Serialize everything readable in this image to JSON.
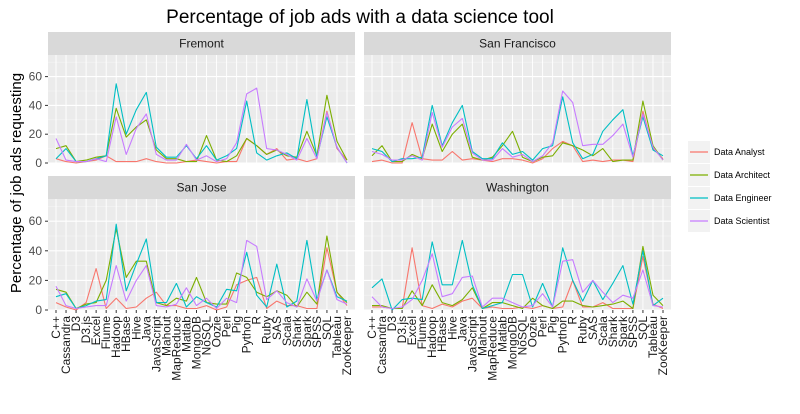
{
  "chart_data": {
    "type": "line",
    "title": "Percentage of job ads with a data science tool",
    "xlabel": "",
    "ylabel": "Percentage of job ads requesting",
    "ylim": [
      0,
      75
    ],
    "yticks": [
      0,
      20,
      40,
      60
    ],
    "grid": true,
    "legend_position": "right",
    "categories": [
      "C++",
      "Cassandra",
      "D3",
      "D3.js",
      "Excel",
      "Flume",
      "Hadoop",
      "HBase",
      "Hive",
      "Java",
      "JavaScript",
      "Mahout",
      "MapReduce",
      "Matlab",
      "MongoDB",
      "NoSQL",
      "Oozie",
      "Perl",
      "Pig",
      "Python",
      "R",
      "Ruby",
      "SAS",
      "Scala",
      "Shark",
      "Spark",
      "SPSS",
      "SQL",
      "Tableau",
      "ZooKeeper"
    ],
    "legend": [
      {
        "name": "Data Analyst",
        "color": "#F8766D"
      },
      {
        "name": "Data Architect",
        "color": "#7CAE00"
      },
      {
        "name": "Data Engineer",
        "color": "#00BFC4"
      },
      {
        "name": "Data Scientist",
        "color": "#C77CFF"
      }
    ],
    "panels": [
      {
        "label": "Fremont",
        "series": [
          {
            "name": "Data Analyst",
            "values": [
              3,
              1,
              0,
              1,
              2,
              5,
              1,
              1,
              1,
              3,
              1,
              0,
              0,
              1,
              2,
              1,
              0,
              1,
              1,
              17,
              12,
              6,
              10,
              2,
              3,
              1,
              3,
              36,
              10,
              2
            ]
          },
          {
            "name": "Data Architect",
            "values": [
              10,
              12,
              1,
              2,
              4,
              5,
              38,
              18,
              25,
              30,
              9,
              3,
              3,
              1,
              1,
              19,
              2,
              1,
              5,
              17,
              12,
              6,
              9,
              5,
              4,
              22,
              5,
              47,
              15,
              2
            ]
          },
          {
            "name": "Data Engineer",
            "values": [
              3,
              10,
              1,
              1,
              3,
              5,
              55,
              20,
              37,
              49,
              11,
              4,
              4,
              12,
              3,
              12,
              2,
              5,
              10,
              43,
              7,
              2,
              5,
              7,
              3,
              44,
              4,
              32,
              11,
              0
            ]
          },
          {
            "name": "Data Scientist",
            "values": [
              17,
              2,
              1,
              1,
              3,
              1,
              32,
              6,
              24,
              34,
              6,
              2,
              2,
              13,
              2,
              5,
              1,
              3,
              14,
              48,
              52,
              10,
              9,
              6,
              2,
              17,
              3,
              35,
              11,
              0
            ]
          }
        ]
      },
      {
        "label": "San Francisco",
        "series": [
          {
            "name": "Data Analyst",
            "values": [
              1,
              2,
              0,
              0,
              28,
              3,
              2,
              2,
              8,
              2,
              3,
              2,
              1,
              3,
              3,
              2,
              0,
              3,
              10,
              15,
              12,
              1,
              2,
              1,
              2,
              2,
              1,
              36,
              10,
              3
            ]
          },
          {
            "name": "Data Architect",
            "values": [
              5,
              12,
              1,
              1,
              6,
              3,
              27,
              8,
              20,
              27,
              4,
              2,
              4,
              12,
              22,
              4,
              1,
              4,
              5,
              14,
              12,
              9,
              5,
              10,
              1,
              2,
              2,
              43,
              12,
              2
            ]
          },
          {
            "name": "Data Engineer",
            "values": [
              10,
              8,
              1,
              3,
              3,
              4,
              40,
              12,
              28,
              40,
              8,
              3,
              3,
              14,
              6,
              8,
              2,
              10,
              12,
              46,
              14,
              3,
              6,
              22,
              30,
              37,
              5,
              32,
              9,
              5
            ]
          },
          {
            "name": "Data Scientist",
            "values": [
              8,
              6,
              2,
              2,
              5,
              2,
              35,
              11,
              25,
              31,
              7,
              2,
              2,
              10,
              4,
              6,
              1,
              5,
              14,
              50,
              42,
              12,
              13,
              13,
              19,
              27,
              4,
              34,
              11,
              2
            ]
          }
        ]
      },
      {
        "label": "San Jose",
        "series": [
          {
            "name": "Data Analyst",
            "values": [
              5,
              2,
              0,
              5,
              28,
              1,
              8,
              1,
              2,
              8,
              12,
              3,
              3,
              1,
              1,
              3,
              0,
              2,
              17,
              20,
              22,
              1,
              6,
              3,
              3,
              1,
              1,
              42,
              12,
              3
            ]
          },
          {
            "name": "Data Architect",
            "values": [
              14,
              12,
              1,
              4,
              5,
              20,
              55,
              22,
              33,
              33,
              5,
              3,
              8,
              6,
              22,
              5,
              4,
              4,
              25,
              22,
              12,
              9,
              13,
              10,
              2,
              12,
              4,
              50,
              12,
              5
            ]
          },
          {
            "name": "Data Engineer",
            "values": [
              9,
              11,
              1,
              3,
              6,
              7,
              58,
              13,
              31,
              48,
              5,
              5,
              18,
              2,
              9,
              5,
              2,
              14,
              13,
              39,
              10,
              2,
              31,
              2,
              6,
              47,
              7,
              27,
              9,
              6
            ]
          },
          {
            "name": "Data Scientist",
            "values": [
              16,
              3,
              1,
              2,
              3,
              3,
              30,
              6,
              20,
              30,
              3,
              2,
              4,
              15,
              3,
              8,
              1,
              8,
              5,
              47,
              43,
              7,
              13,
              5,
              2,
              21,
              6,
              27,
              7,
              4
            ]
          }
        ]
      },
      {
        "label": "Washington",
        "series": [
          {
            "name": "Data Analyst",
            "values": [
              2,
              2,
              1,
              1,
              42,
              3,
              1,
              4,
              2,
              6,
              8,
              1,
              2,
              1,
              1,
              2,
              1,
              3,
              1,
              2,
              20,
              2,
              2,
              5,
              1,
              1,
              1,
              36,
              4,
              1
            ]
          },
          {
            "name": "Data Architect",
            "values": [
              3,
              3,
              1,
              1,
              13,
              3,
              17,
              5,
              3,
              7,
              15,
              1,
              5,
              5,
              3,
              1,
              8,
              3,
              1,
              6,
              6,
              3,
              2,
              3,
              4,
              6,
              1,
              43,
              10,
              3
            ]
          },
          {
            "name": "Data Engineer",
            "values": [
              15,
              21,
              0,
              7,
              8,
              7,
              46,
              17,
              17,
              47,
              17,
              1,
              3,
              5,
              24,
              24,
              2,
              18,
              2,
              42,
              20,
              6,
              20,
              7,
              18,
              30,
              4,
              40,
              3,
              8
            ]
          },
          {
            "name": "Data Scientist",
            "values": [
              9,
              2,
              1,
              2,
              7,
              20,
              38,
              9,
              11,
              22,
              23,
              2,
              8,
              8,
              5,
              2,
              3,
              11,
              2,
              33,
              34,
              12,
              20,
              12,
              5,
              10,
              8,
              27,
              3,
              2
            ]
          }
        ]
      }
    ]
  }
}
